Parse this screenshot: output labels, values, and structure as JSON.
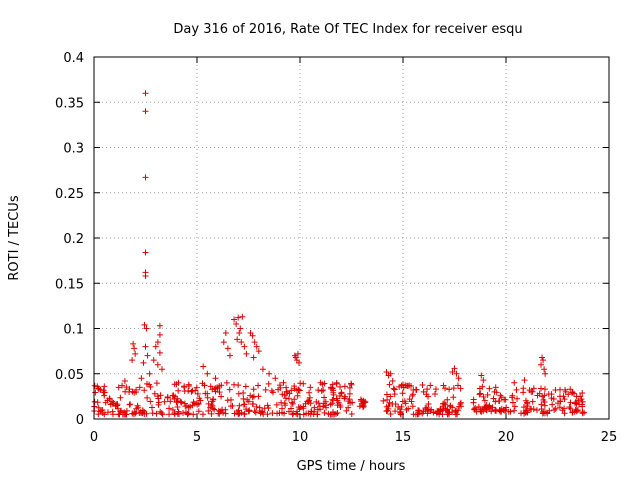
{
  "chart_data": {
    "type": "scatter",
    "title": "Day 316 of 2016, Rate Of TEC Index for receiver esqu",
    "xlabel": "GPS time / hours",
    "ylabel": "ROTI / TECUs",
    "xlim": [
      0,
      25
    ],
    "ylim": [
      0,
      0.4
    ],
    "x_ticks": [
      0,
      5,
      10,
      15,
      20,
      25
    ],
    "y_ticks": [
      0,
      0.05,
      0.1,
      0.15,
      0.2,
      0.25,
      0.3,
      0.35,
      0.4
    ],
    "x_tick_labels": [
      "0",
      "5",
      "10",
      "15",
      "20",
      "25"
    ],
    "y_tick_labels": [
      "0",
      "0.05",
      "0.1",
      "0.15",
      "0.2",
      "0.25",
      "0.3",
      "0.35",
      "0.4"
    ],
    "grid": true,
    "marker": "+",
    "color": "#e00000",
    "series": [
      {
        "name": "ROTI",
        "points": [
          [
            2.5,
            0.36
          ],
          [
            2.5,
            0.34
          ],
          [
            2.5,
            0.267
          ],
          [
            2.5,
            0.184
          ],
          [
            2.5,
            0.162
          ],
          [
            2.5,
            0.158
          ],
          [
            2.45,
            0.104
          ],
          [
            2.55,
            0.1
          ],
          [
            2.5,
            0.08
          ],
          [
            2.6,
            0.07
          ],
          [
            2.4,
            0.062
          ],
          [
            3.2,
            0.103
          ],
          [
            3.2,
            0.093
          ],
          [
            3.1,
            0.085
          ],
          [
            3.0,
            0.08
          ],
          [
            3.2,
            0.073
          ],
          [
            2.9,
            0.065
          ],
          [
            3.1,
            0.06
          ],
          [
            3.3,
            0.055
          ],
          [
            1.9,
            0.083
          ],
          [
            1.95,
            0.078
          ],
          [
            2.0,
            0.072
          ],
          [
            1.85,
            0.065
          ],
          [
            2.7,
            0.05
          ],
          [
            2.3,
            0.045
          ],
          [
            1.5,
            0.042
          ],
          [
            1.2,
            0.035
          ],
          [
            0.5,
            0.036
          ],
          [
            0.2,
            0.034
          ],
          [
            4.1,
            0.04
          ],
          [
            4.6,
            0.038
          ],
          [
            5.3,
            0.058
          ],
          [
            5.5,
            0.05
          ],
          [
            5.9,
            0.045
          ],
          [
            6.3,
            0.085
          ],
          [
            6.4,
            0.095
          ],
          [
            6.5,
            0.078
          ],
          [
            6.6,
            0.07
          ],
          [
            6.8,
            0.11
          ],
          [
            6.9,
            0.105
          ],
          [
            7.0,
            0.112
          ],
          [
            7.1,
            0.1
          ],
          [
            7.2,
            0.113
          ],
          [
            7.05,
            0.095
          ],
          [
            6.95,
            0.088
          ],
          [
            7.15,
            0.085
          ],
          [
            7.3,
            0.08
          ],
          [
            7.4,
            0.072
          ],
          [
            7.6,
            0.095
          ],
          [
            7.7,
            0.092
          ],
          [
            7.8,
            0.085
          ],
          [
            7.9,
            0.08
          ],
          [
            8.0,
            0.075
          ],
          [
            7.75,
            0.068
          ],
          [
            8.2,
            0.055
          ],
          [
            8.5,
            0.05
          ],
          [
            8.8,
            0.045
          ],
          [
            9.2,
            0.04
          ],
          [
            9.75,
            0.07
          ],
          [
            9.8,
            0.068
          ],
          [
            9.85,
            0.065
          ],
          [
            9.9,
            0.072
          ],
          [
            9.95,
            0.062
          ],
          [
            10.5,
            0.035
          ],
          [
            11.0,
            0.04
          ],
          [
            11.5,
            0.035
          ],
          [
            12.0,
            0.028
          ],
          [
            12.4,
            0.022
          ],
          [
            13.0,
            0.02
          ],
          [
            13.1,
            0.018
          ],
          [
            14.2,
            0.052
          ],
          [
            14.3,
            0.048
          ],
          [
            14.4,
            0.05
          ],
          [
            14.5,
            0.042
          ],
          [
            15.0,
            0.038
          ],
          [
            15.5,
            0.032
          ],
          [
            16.0,
            0.03
          ],
          [
            16.6,
            0.033
          ],
          [
            17.4,
            0.052
          ],
          [
            17.5,
            0.056
          ],
          [
            17.6,
            0.05
          ],
          [
            17.7,
            0.045
          ],
          [
            18.8,
            0.048
          ],
          [
            18.9,
            0.043
          ],
          [
            19.5,
            0.035
          ],
          [
            20.4,
            0.04
          ],
          [
            20.9,
            0.043
          ],
          [
            21.7,
            0.06
          ],
          [
            21.75,
            0.068
          ],
          [
            21.8,
            0.065
          ],
          [
            21.85,
            0.055
          ],
          [
            21.9,
            0.05
          ],
          [
            22.4,
            0.032
          ],
          [
            22.9,
            0.03
          ],
          [
            23.3,
            0.028
          ],
          [
            23.6,
            0.025
          ]
        ]
      }
    ],
    "baseline_bands": [
      {
        "x_start": 0.0,
        "x_end": 12.6,
        "y_min": 0.005,
        "y_max": 0.04
      },
      {
        "x_start": 12.9,
        "x_end": 13.3,
        "y_min": 0.012,
        "y_max": 0.022
      },
      {
        "x_start": 13.9,
        "x_end": 17.9,
        "y_min": 0.005,
        "y_max": 0.038
      },
      {
        "x_start": 18.4,
        "x_end": 20.6,
        "y_min": 0.008,
        "y_max": 0.036
      },
      {
        "x_start": 20.7,
        "x_end": 23.8,
        "y_min": 0.006,
        "y_max": 0.035
      }
    ],
    "baseline_density": 650
  }
}
